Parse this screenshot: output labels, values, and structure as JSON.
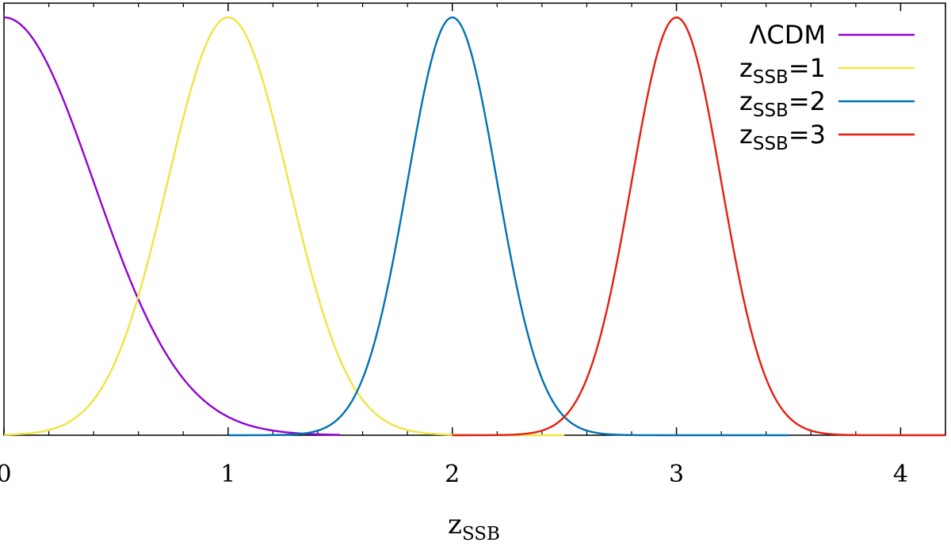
{
  "chart_data": {
    "type": "line",
    "xlabel": {
      "base": "z",
      "sub": "SSB"
    },
    "ylabel": "",
    "xlim": [
      0,
      4.2
    ],
    "ylim": [
      0,
      1
    ],
    "x_ticks": [
      0,
      1,
      2,
      3,
      4
    ],
    "x_tick_labels": [
      "0",
      "1",
      "2",
      "3",
      "4"
    ],
    "minor_x_ticks": [
      0.2,
      0.4,
      0.6,
      0.8,
      1.2,
      1.4,
      1.6,
      1.8,
      2.2,
      2.4,
      2.6,
      2.8,
      3.2,
      3.4,
      3.6,
      3.8,
      4.2
    ],
    "y_tick_labels_shown": false,
    "grid": false,
    "legend_placement": "top-right",
    "series": [
      {
        "name": "ΛCDM",
        "legend_label": {
          "base": "ΛCDM",
          "sub": "",
          "suffix": ""
        },
        "color": "#9400d3",
        "shape": "gaussian",
        "center": 0.0,
        "sigma": 0.4,
        "x_range": [
          0,
          1.5
        ],
        "peak": 1.0
      },
      {
        "name": "zSSB=1",
        "legend_label": {
          "base": "z",
          "sub": "SSB",
          "suffix": "=1"
        },
        "color": "#f0e442",
        "shape": "gaussian",
        "center": 1.0,
        "sigma": 0.27,
        "x_range": [
          0,
          2.5
        ],
        "peak": 1.0
      },
      {
        "name": "zSSB=2",
        "legend_label": {
          "base": "z",
          "sub": "SSB",
          "suffix": "=2"
        },
        "color": "#0072b2",
        "shape": "gaussian",
        "center": 2.0,
        "sigma": 0.2,
        "x_range": [
          1,
          3.5
        ],
        "peak": 1.0
      },
      {
        "name": "zSSB=3",
        "legend_label": {
          "base": "z",
          "sub": "SSB",
          "suffix": "=3"
        },
        "color": "#e51e10",
        "shape": "gaussian",
        "center": 3.0,
        "sigma": 0.2,
        "x_range": [
          2,
          4.2
        ],
        "peak": 1.0
      }
    ]
  }
}
